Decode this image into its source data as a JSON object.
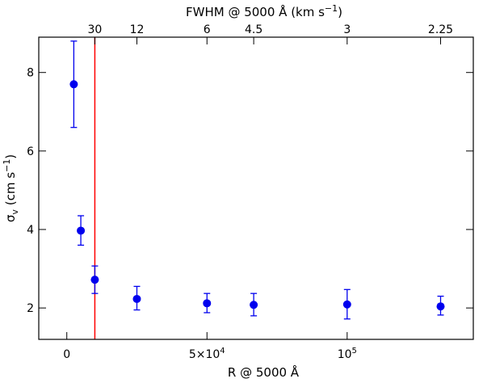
{
  "chart_data": {
    "type": "scatter",
    "xlabel": {
      "main": "R @ 5000 Å"
    },
    "top_label": {
      "main": "FWHM @ 5000 Å (km s",
      "sup": "−1",
      "close": ")"
    },
    "ylabel": {
      "main": "σ",
      "sub": "v",
      "rest": " (cm s",
      "sup": "−1",
      "close": ")"
    },
    "xlim": [
      -10000,
      145000
    ],
    "ylim": [
      1.2,
      8.9
    ],
    "x_ticks": [
      {
        "value": 0,
        "label": "0"
      },
      {
        "value": 50000,
        "label": "5×10",
        "sup": "4"
      },
      {
        "value": 100000,
        "label": "10",
        "sup": "5"
      }
    ],
    "y_ticks": [
      {
        "value": 2,
        "label": "2"
      },
      {
        "value": 4,
        "label": "4"
      },
      {
        "value": 6,
        "label": "6"
      },
      {
        "value": 8,
        "label": "8"
      }
    ],
    "top_ticks": [
      {
        "value": 10000,
        "label": "30"
      },
      {
        "value": 25000,
        "label": "12"
      },
      {
        "value": 50000,
        "label": "6"
      },
      {
        "value": 66667,
        "label": "4.5"
      },
      {
        "value": 100000,
        "label": "3"
      },
      {
        "value": 133333,
        "label": "2.25"
      }
    ],
    "series": [
      {
        "color": "#0000ee",
        "points": [
          {
            "x": 2500,
            "y": 7.7,
            "err_low": 6.6,
            "err_high": 8.8
          },
          {
            "x": 5000,
            "y": 3.97,
            "err_low": 3.6,
            "err_high": 4.35
          },
          {
            "x": 10000,
            "y": 2.72,
            "err_low": 2.37,
            "err_high": 3.07
          },
          {
            "x": 25000,
            "y": 2.23,
            "err_low": 1.95,
            "err_high": 2.55
          },
          {
            "x": 50000,
            "y": 2.12,
            "err_low": 1.88,
            "err_high": 2.37
          },
          {
            "x": 66667,
            "y": 2.08,
            "err_low": 1.8,
            "err_high": 2.37
          },
          {
            "x": 100000,
            "y": 2.09,
            "err_low": 1.72,
            "err_high": 2.47
          },
          {
            "x": 133333,
            "y": 2.04,
            "err_low": 1.82,
            "err_high": 2.3
          }
        ]
      }
    ],
    "vertical_line": {
      "x": 10000,
      "color": "#ff0000"
    },
    "grid": false,
    "legend": "none"
  }
}
